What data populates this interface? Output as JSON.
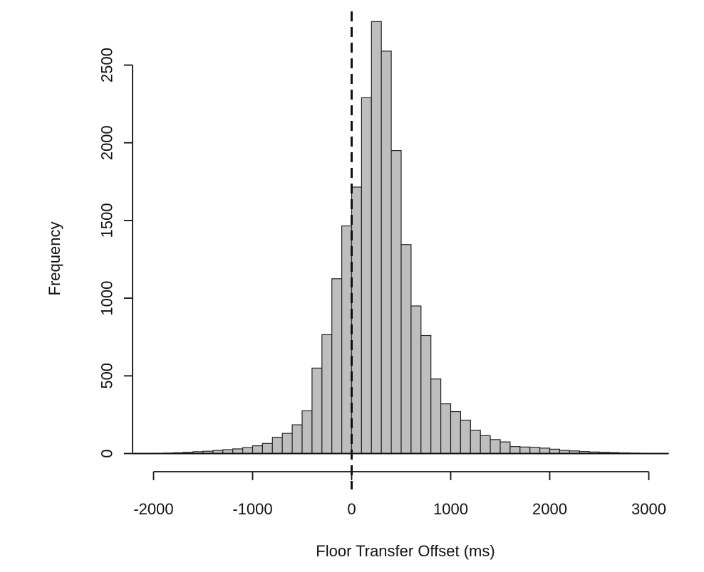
{
  "chart_data": {
    "type": "bar",
    "xlabel": "Floor Transfer Offset (ms)",
    "ylabel": "Frequency",
    "xlim": [
      -2000,
      3200
    ],
    "ylim": [
      0,
      2800
    ],
    "bin_width": 100,
    "bins": [
      {
        "start": -2000,
        "end": -1900,
        "value": 2
      },
      {
        "start": -1900,
        "end": -1800,
        "value": 3
      },
      {
        "start": -1800,
        "end": -1700,
        "value": 5
      },
      {
        "start": -1700,
        "end": -1600,
        "value": 8
      },
      {
        "start": -1600,
        "end": -1500,
        "value": 12
      },
      {
        "start": -1500,
        "end": -1400,
        "value": 15
      },
      {
        "start": -1400,
        "end": -1300,
        "value": 20
      },
      {
        "start": -1300,
        "end": -1200,
        "value": 25
      },
      {
        "start": -1200,
        "end": -1100,
        "value": 30
      },
      {
        "start": -1100,
        "end": -1000,
        "value": 38
      },
      {
        "start": -1000,
        "end": -900,
        "value": 50
      },
      {
        "start": -900,
        "end": -800,
        "value": 65
      },
      {
        "start": -800,
        "end": -700,
        "value": 105
      },
      {
        "start": -700,
        "end": -600,
        "value": 130
      },
      {
        "start": -600,
        "end": -500,
        "value": 185
      },
      {
        "start": -500,
        "end": -400,
        "value": 275
      },
      {
        "start": -400,
        "end": -300,
        "value": 550
      },
      {
        "start": -300,
        "end": -200,
        "value": 765
      },
      {
        "start": -200,
        "end": -100,
        "value": 1125
      },
      {
        "start": -100,
        "end": 0,
        "value": 1465
      },
      {
        "start": 0,
        "end": 100,
        "value": 1715
      },
      {
        "start": 100,
        "end": 200,
        "value": 2290
      },
      {
        "start": 200,
        "end": 300,
        "value": 2780
      },
      {
        "start": 300,
        "end": 400,
        "value": 2590
      },
      {
        "start": 400,
        "end": 500,
        "value": 1950
      },
      {
        "start": 500,
        "end": 600,
        "value": 1345
      },
      {
        "start": 600,
        "end": 700,
        "value": 950
      },
      {
        "start": 700,
        "end": 800,
        "value": 760
      },
      {
        "start": 800,
        "end": 900,
        "value": 480
      },
      {
        "start": 900,
        "end": 1000,
        "value": 320
      },
      {
        "start": 1000,
        "end": 1100,
        "value": 270
      },
      {
        "start": 1100,
        "end": 1200,
        "value": 215
      },
      {
        "start": 1200,
        "end": 1300,
        "value": 150
      },
      {
        "start": 1300,
        "end": 1400,
        "value": 115
      },
      {
        "start": 1400,
        "end": 1500,
        "value": 90
      },
      {
        "start": 1500,
        "end": 1600,
        "value": 75
      },
      {
        "start": 1600,
        "end": 1700,
        "value": 45
      },
      {
        "start": 1700,
        "end": 1800,
        "value": 42
      },
      {
        "start": 1800,
        "end": 1900,
        "value": 40
      },
      {
        "start": 1900,
        "end": 2000,
        "value": 35
      },
      {
        "start": 2000,
        "end": 2100,
        "value": 28
      },
      {
        "start": 2100,
        "end": 2200,
        "value": 20
      },
      {
        "start": 2200,
        "end": 2300,
        "value": 17
      },
      {
        "start": 2300,
        "end": 2400,
        "value": 13
      },
      {
        "start": 2400,
        "end": 2500,
        "value": 10
      },
      {
        "start": 2500,
        "end": 2600,
        "value": 8
      },
      {
        "start": 2600,
        "end": 2700,
        "value": 6
      },
      {
        "start": 2700,
        "end": 2800,
        "value": 4
      },
      {
        "start": 2800,
        "end": 2900,
        "value": 3
      },
      {
        "start": 2900,
        "end": 3000,
        "value": 2
      },
      {
        "start": 3000,
        "end": 3100,
        "value": 1
      },
      {
        "start": 3100,
        "end": 3200,
        "value": 1
      }
    ],
    "x_ticks": [
      {
        "value": -2000,
        "label": "-2000"
      },
      {
        "value": -1000,
        "label": "-1000"
      },
      {
        "value": 0,
        "label": "0"
      },
      {
        "value": 1000,
        "label": "1000"
      },
      {
        "value": 2000,
        "label": "2000"
      },
      {
        "value": 3000,
        "label": "3000"
      }
    ],
    "y_ticks": [
      {
        "value": 0,
        "label": "0"
      },
      {
        "value": 500,
        "label": "500"
      },
      {
        "value": 1000,
        "label": "1000"
      },
      {
        "value": 1500,
        "label": "1500"
      },
      {
        "value": 2000,
        "label": "2000"
      },
      {
        "value": 2500,
        "label": "2500"
      }
    ],
    "reference_line": {
      "x": 0,
      "style": "dashed"
    },
    "colors": {
      "bar_fill": "#bebebe",
      "bar_stroke": "#222222",
      "axis": "#111111",
      "background": "#ffffff"
    },
    "grid": false,
    "legend": "none"
  }
}
